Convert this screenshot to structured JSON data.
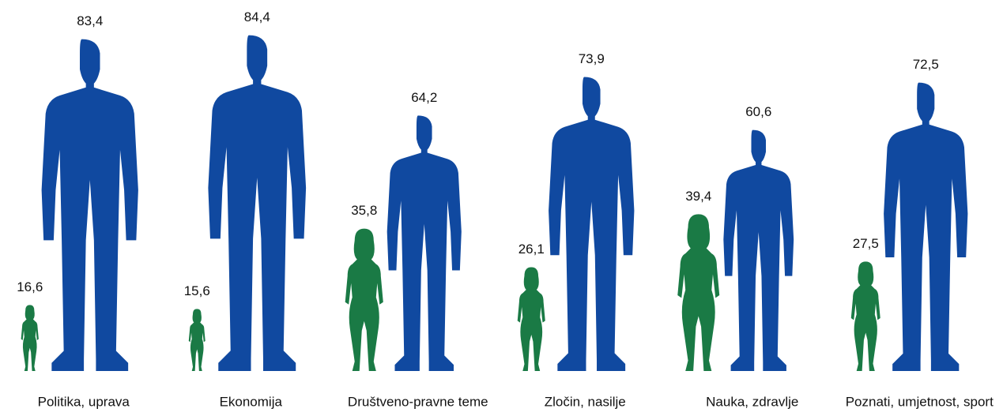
{
  "chart_data": {
    "type": "pictogram",
    "categories": [
      "Politika, uprava",
      "Ekonomija",
      "Društveno-pravne teme",
      "Zločin, nasilje",
      "Nauka, zdravlje",
      "Poznati, umjetnost, sport"
    ],
    "series": [
      {
        "color": "#1a7a45",
        "values": [
          16.6,
          15.6,
          35.8,
          26.1,
          39.4,
          27.5
        ],
        "value_labels": [
          "16,6",
          "15,6",
          "35,8",
          "26,1",
          "39,4",
          "27,5"
        ]
      },
      {
        "color": "#1049a0",
        "values": [
          83.4,
          84.4,
          64.2,
          73.9,
          60.6,
          72.5
        ],
        "value_labels": [
          "83,4",
          "84,4",
          "64,2",
          "73,9",
          "60,6",
          "72,5"
        ]
      }
    ]
  }
}
